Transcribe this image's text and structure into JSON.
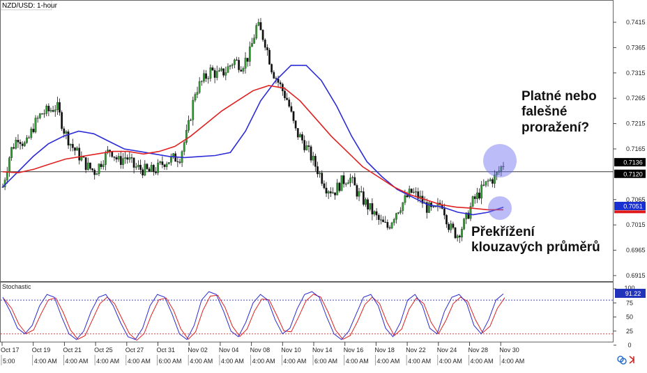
{
  "chart_data": {
    "type": "candlestick",
    "title": "NZD/USD: 1-hour",
    "price_axis": {
      "ticks": [
        "0.7415",
        "0.7365",
        "0.7315",
        "0.7265",
        "0.7215",
        "0.7165",
        "0.7065",
        "0.7015",
        "0.6965",
        "0.6915"
      ],
      "range": [
        0.6895,
        0.7445
      ]
    },
    "price_tags": [
      {
        "label": "0.7136",
        "value": 0.7136,
        "style": "dark"
      },
      {
        "label": "0.7120",
        "value": 0.712,
        "style": "dark"
      },
      {
        "label": "0.7051",
        "value": 0.7051,
        "style": "blue"
      },
      {
        "label": "",
        "value": 0.7045,
        "style": "red"
      }
    ],
    "horizontal_line": 0.712,
    "date_labels": [
      "Oct 17",
      "Oct 19",
      "Oct 21",
      "Oct 25",
      "Oct 27",
      "Oct 31",
      "Nov 02",
      "Nov 04",
      "Nov 08",
      "Nov 10",
      "Nov 14",
      "Nov 16",
      "Nov 18",
      "Nov 22",
      "Nov 24",
      "Nov 28",
      "Nov 30"
    ],
    "time_labels": [
      "5:00",
      "4:00 AM",
      "4:00 AM",
      "4:00 AM",
      "4:00 AM",
      "6:00 AM",
      "4:00 AM",
      "4:00 AM",
      "4:00 AM",
      "4:00 AM",
      "6:00 AM",
      "4:00 AM",
      "4:00 AM",
      "4:00 AM",
      "4:00 AM",
      "4:00 AM",
      "4:00 AM"
    ],
    "price_path": [
      0.709,
      0.716,
      0.719,
      0.717,
      0.721,
      0.7235,
      0.724,
      0.725,
      0.72,
      0.717,
      0.715,
      0.713,
      0.712,
      0.7145,
      0.7165,
      0.714,
      0.715,
      0.713,
      0.7125,
      0.712,
      0.7125,
      0.714,
      0.7145,
      0.715,
      0.72,
      0.728,
      0.73,
      0.732,
      0.731,
      0.732,
      0.734,
      0.733,
      0.735,
      0.741,
      0.738,
      0.732,
      0.729,
      0.726,
      0.72,
      0.718,
      0.715,
      0.712,
      0.709,
      0.708,
      0.71,
      0.711,
      0.708,
      0.706,
      0.704,
      0.702,
      0.701,
      0.704,
      0.706,
      0.708,
      0.707,
      0.705,
      0.704,
      0.706,
      0.701,
      0.6995,
      0.702,
      0.706,
      0.708,
      0.71,
      0.711,
      0.7136
    ],
    "series": [
      {
        "name": "",
        "color": "#2b2bd8",
        "values": [
          0.709,
          0.712,
          0.715,
          0.7175,
          0.719,
          0.72,
          0.7195,
          0.718,
          0.7165,
          0.716,
          0.7155,
          0.715,
          0.7148,
          0.715,
          0.7152,
          0.7158,
          0.72,
          0.726,
          0.73,
          0.733,
          0.733,
          0.73,
          0.725,
          0.719,
          0.714,
          0.711,
          0.7085,
          0.707,
          0.7055,
          0.705,
          0.704,
          0.7035,
          0.704,
          0.705
        ]
      },
      {
        "name": "",
        "color": "#e02020",
        "values": [
          0.712,
          0.7118,
          0.7125,
          0.7135,
          0.7145,
          0.715,
          0.7155,
          0.716,
          0.716,
          0.7155,
          0.716,
          0.717,
          0.719,
          0.7215,
          0.724,
          0.726,
          0.728,
          0.729,
          0.7285,
          0.726,
          0.7225,
          0.719,
          0.716,
          0.713,
          0.711,
          0.709,
          0.7075,
          0.7065,
          0.7055,
          0.705,
          0.7048,
          0.7045,
          0.7045
        ]
      }
    ],
    "annotations": [
      {
        "text_lines": [
          "Platné nebo",
          "falešné",
          "proražení?"
        ],
        "target": "highlight"
      },
      {
        "text_lines": [
          "Překřížení",
          "klouzavých průměrů"
        ],
        "target": "crossover"
      }
    ],
    "stochastic": {
      "title": "Stochastic",
      "value_label": "91.22",
      "ticks": [
        "100",
        "75",
        "50",
        "25",
        "0"
      ],
      "levels": [
        80,
        20
      ],
      "k": [
        85,
        60,
        30,
        20,
        35,
        70,
        90,
        85,
        50,
        20,
        10,
        25,
        60,
        85,
        90,
        70,
        40,
        15,
        10,
        30,
        70,
        90,
        85,
        55,
        20,
        10,
        35,
        80,
        95,
        90,
        60,
        25,
        15,
        40,
        75,
        90,
        80,
        45,
        20,
        30,
        65,
        90,
        95,
        85,
        50,
        20,
        10,
        25,
        55,
        85,
        90,
        70,
        30,
        15,
        40,
        80,
        90,
        70,
        30,
        20,
        60,
        85,
        90,
        75,
        35,
        20,
        45,
        80,
        91
      ]
    }
  }
}
